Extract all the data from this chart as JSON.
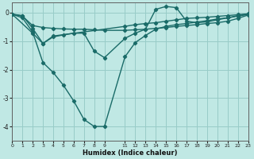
{
  "xlabel": "Humidex (Indice chaleur)",
  "bg_color": "#c0e8e4",
  "grid_color": "#98ccc8",
  "line_color": "#1a6b68",
  "xlim": [
    0,
    23
  ],
  "ylim": [
    -4.5,
    0.35
  ],
  "xticks": [
    0,
    1,
    2,
    3,
    4,
    5,
    6,
    7,
    8,
    9,
    11,
    12,
    13,
    14,
    15,
    16,
    17,
    18,
    19,
    20,
    21,
    22,
    23
  ],
  "yticks": [
    0,
    -1,
    -2,
    -3,
    -4
  ],
  "curves": [
    {
      "x": [
        0,
        1,
        2,
        3,
        4,
        5,
        6,
        7,
        8,
        9,
        11,
        12,
        13,
        14,
        15,
        16,
        17,
        18,
        19,
        20,
        21,
        22,
        23
      ],
      "y": [
        -0.05,
        -0.12,
        -0.45,
        -0.52,
        -0.55,
        -0.57,
        -0.58,
        -0.58,
        -0.6,
        -0.62,
        -0.62,
        -0.6,
        -0.58,
        -0.55,
        -0.52,
        -0.48,
        -0.45,
        -0.42,
        -0.38,
        -0.35,
        -0.3,
        -0.2,
        -0.08
      ]
    },
    {
      "x": [
        0,
        1,
        2,
        3,
        4,
        5,
        6,
        7,
        8,
        9,
        11,
        12,
        13,
        14,
        15,
        16,
        17,
        18,
        19,
        20,
        21,
        22,
        23
      ],
      "y": [
        -0.05,
        -0.18,
        -0.68,
        -1.75,
        -2.1,
        -2.55,
        -3.1,
        -3.75,
        -4.0,
        -4.0,
        -1.55,
        -1.05,
        -0.8,
        -0.58,
        -0.48,
        -0.42,
        -0.38,
        -0.33,
        -0.28,
        -0.22,
        -0.18,
        -0.12,
        -0.06
      ]
    },
    {
      "x": [
        0,
        2,
        3,
        4,
        5,
        6,
        7,
        8,
        9,
        11,
        12,
        13,
        14,
        15,
        16,
        17,
        18,
        19,
        20,
        21,
        22,
        23
      ],
      "y": [
        -0.05,
        -0.72,
        -1.08,
        -0.85,
        -0.78,
        -0.72,
        -0.72,
        -1.35,
        -1.58,
        -0.9,
        -0.72,
        -0.58,
        0.12,
        0.22,
        0.18,
        -0.3,
        -0.35,
        -0.32,
        -0.25,
        -0.18,
        -0.1,
        -0.04
      ]
    },
    {
      "x": [
        0,
        1,
        2,
        3,
        4,
        11,
        12,
        13,
        14,
        15,
        16,
        17,
        18,
        19,
        20,
        21,
        22,
        23
      ],
      "y": [
        -0.05,
        -0.1,
        -0.55,
        -1.08,
        -0.82,
        -0.48,
        -0.42,
        -0.38,
        -0.35,
        -0.3,
        -0.25,
        -0.2,
        -0.18,
        -0.16,
        -0.13,
        -0.1,
        -0.07,
        -0.04
      ]
    }
  ]
}
